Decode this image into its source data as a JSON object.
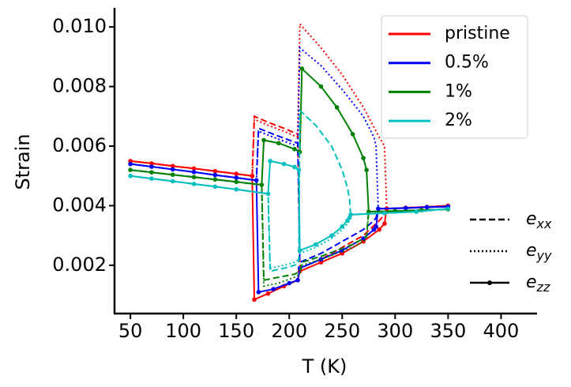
{
  "chart_data": {
    "type": "line",
    "xlabel": "T (K)",
    "ylabel": "Strain",
    "xlim": [
      35,
      434
    ],
    "ylim": [
      0.00038,
      0.01064
    ],
    "xticks": [
      50,
      100,
      150,
      200,
      250,
      300,
      350,
      400
    ],
    "yticks": [
      0.002,
      0.004,
      0.006,
      0.008,
      {
        "value": 0.01,
        "label": "0.010"
      }
    ],
    "legend": "upper right",
    "components": [
      {
        "symbol": "e",
        "sub": "xx",
        "style": "dashed"
      },
      {
        "symbol": "e",
        "sub": "yy",
        "style": "dotted"
      },
      {
        "symbol": "e",
        "sub": "zz",
        "style": "solid-dot"
      }
    ],
    "components_legend": "lower right",
    "series": [
      {
        "name": "pristine",
        "color": "#ff0000",
        "x": [
          50,
          70,
          90,
          110,
          130,
          150,
          165,
          167,
          180,
          195,
          208,
          210,
          230,
          250,
          270,
          285,
          290,
          292,
          310,
          330,
          350
        ],
        "values": [
          [
            0.0055,
            0.00542,
            0.00533,
            0.00525,
            0.00516,
            0.00507,
            0.005,
            0.007,
            0.0068,
            0.0066,
            0.0064,
            0.0019,
            0.0022,
            0.0026,
            0.003,
            0.0035,
            0.0037,
            0.0039,
            0.00393,
            0.00396,
            0.004
          ],
          [
            0.0055,
            0.00542,
            0.00533,
            0.00525,
            0.00516,
            0.00507,
            0.005,
            0.0069,
            0.0067,
            0.0065,
            0.0063,
            0.0101,
            0.0093,
            0.0084,
            0.0073,
            0.0063,
            0.006,
            0.0039,
            0.00393,
            0.00396,
            0.004
          ],
          [
            0.0055,
            0.00542,
            0.00533,
            0.00525,
            0.00516,
            0.00507,
            0.005,
            0.00085,
            0.00105,
            0.0013,
            0.0015,
            0.0018,
            0.0021,
            0.0024,
            0.0028,
            0.0032,
            0.0034,
            0.0039,
            0.00393,
            0.00396,
            0.004
          ]
        ]
      },
      {
        "name": "0.5%",
        "color": "#0000ff",
        "x": [
          50,
          70,
          90,
          110,
          130,
          150,
          169,
          171,
          185,
          200,
          208,
          210,
          230,
          250,
          270,
          280,
          282,
          284,
          310,
          330,
          350
        ],
        "values": [
          [
            0.0054,
            0.00531,
            0.00522,
            0.00513,
            0.00503,
            0.00494,
            0.00485,
            0.0066,
            0.0064,
            0.0062,
            0.0061,
            0.0021,
            0.0024,
            0.0028,
            0.0032,
            0.0035,
            0.0036,
            0.0039,
            0.00392,
            0.00395,
            0.00397
          ],
          [
            0.0054,
            0.00531,
            0.00522,
            0.00513,
            0.00503,
            0.00494,
            0.00485,
            0.0065,
            0.0063,
            0.0061,
            0.006,
            0.0093,
            0.0087,
            0.0079,
            0.007,
            0.0063,
            0.006,
            0.0039,
            0.00392,
            0.00395,
            0.00397
          ],
          [
            0.0054,
            0.00531,
            0.00522,
            0.00513,
            0.00503,
            0.00494,
            0.00485,
            0.0011,
            0.0012,
            0.0014,
            0.0015,
            0.0019,
            0.0022,
            0.0025,
            0.0029,
            0.0032,
            0.0033,
            0.0039,
            0.00392,
            0.00395,
            0.00397
          ]
        ]
      },
      {
        "name": "1%",
        "color": "#008000",
        "x": [
          50,
          70,
          90,
          110,
          130,
          150,
          174,
          176,
          190,
          205,
          210,
          212,
          230,
          245,
          260,
          270,
          273,
          275,
          300,
          325,
          350
        ],
        "values": [
          [
            0.0052,
            0.00512,
            0.00504,
            0.00496,
            0.00488,
            0.0048,
            0.0047,
            0.0015,
            0.0016,
            0.0017,
            0.0018,
            0.0021,
            0.0023,
            0.0025,
            0.0027,
            0.0029,
            0.003,
            0.0038,
            0.00382,
            0.00385,
            0.00388
          ],
          [
            0.0052,
            0.00512,
            0.00504,
            0.00496,
            0.00488,
            0.0048,
            0.0047,
            0.0013,
            0.0014,
            0.0016,
            0.0017,
            0.002,
            0.0022,
            0.0024,
            0.0026,
            0.0028,
            0.0029,
            0.0038,
            0.00382,
            0.00385,
            0.00388
          ],
          [
            0.0052,
            0.00512,
            0.00504,
            0.00496,
            0.00488,
            0.0048,
            0.0047,
            0.0062,
            0.0061,
            0.0059,
            0.0058,
            0.0086,
            0.008,
            0.0073,
            0.0064,
            0.0056,
            0.0052,
            0.0038,
            0.00382,
            0.00385,
            0.00388
          ]
        ]
      },
      {
        "name": "2%",
        "color": "#00bfbf",
        "x": [
          50,
          70,
          90,
          110,
          130,
          150,
          180,
          182,
          195,
          205,
          209,
          210,
          225,
          240,
          250,
          255,
          257,
          258,
          290,
          320,
          350
        ],
        "values": [
          [
            0.005,
            0.00491,
            0.00482,
            0.00473,
            0.00464,
            0.00455,
            0.0044,
            0.0018,
            0.0019,
            0.002,
            0.0021,
            0.0072,
            0.0067,
            0.006,
            0.0052,
            0.0046,
            0.0042,
            0.0037,
            0.00375,
            0.0038,
            0.0039
          ],
          [
            0.005,
            0.00491,
            0.00482,
            0.00473,
            0.00464,
            0.00455,
            0.0044,
            0.0019,
            0.002,
            0.0021,
            0.0022,
            0.0024,
            0.0026,
            0.0029,
            0.0032,
            0.0034,
            0.0035,
            0.0037,
            0.00375,
            0.0038,
            0.0039
          ],
          [
            0.005,
            0.00491,
            0.00482,
            0.00473,
            0.00464,
            0.00455,
            0.0044,
            0.0055,
            0.0054,
            0.0053,
            0.0052,
            0.0025,
            0.0027,
            0.003,
            0.0033,
            0.0035,
            0.0036,
            0.0037,
            0.00375,
            0.0038,
            0.0039
          ]
        ]
      }
    ]
  }
}
